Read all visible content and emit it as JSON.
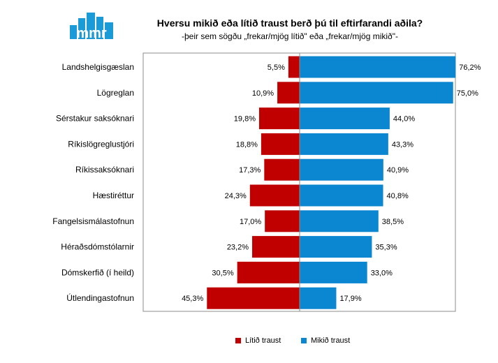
{
  "header": {
    "logo_text": "mmr",
    "title": "Hversu mikið eða lítið traust berð þú til eftirfarandi aðila?",
    "subtitle": "-þeir sem sögðu „frekar/mjög lítið\" eða „frekar/mjög mikið\"-"
  },
  "colors": {
    "low": "#c00000",
    "high": "#0b86d0",
    "logo": "#1a9ad6"
  },
  "chart_data": {
    "type": "bar",
    "orientation": "horizontal-diverging",
    "categories": [
      "Landshelgisgæslan",
      "Lögreglan",
      "Sérstakur saksóknari",
      "Ríkislögreglustjóri",
      "Ríkissaksóknari",
      "Hæstiréttur",
      "Fangelsismálastofnun",
      "Héraðsdómstólarnir",
      "Dómskerfið (í heild)",
      "Útlendingastofnun"
    ],
    "series": [
      {
        "name": "Lítið traust",
        "values": [
          5.5,
          10.9,
          19.8,
          18.8,
          17.3,
          24.3,
          17.0,
          23.2,
          30.5,
          45.3
        ],
        "labels": [
          "5,5%",
          "10,9%",
          "19,8%",
          "18,8%",
          "17,3%",
          "24,3%",
          "17,0%",
          "23,2%",
          "30,5%",
          "45,3%"
        ]
      },
      {
        "name": "Mikið traust",
        "values": [
          76.2,
          75.0,
          44.0,
          43.3,
          40.9,
          40.8,
          38.5,
          35.3,
          33.0,
          17.9
        ],
        "labels": [
          "76,2%",
          "75,0%",
          "44,0%",
          "43,3%",
          "40,9%",
          "40,8%",
          "38,5%",
          "35,3%",
          "33,0%",
          "17,9%"
        ]
      }
    ],
    "xlim": [
      -100,
      100
    ],
    "grid": false,
    "legend_position": "bottom"
  }
}
